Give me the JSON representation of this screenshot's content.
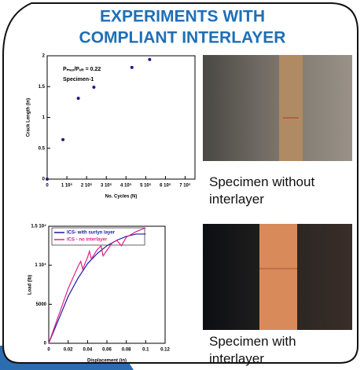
{
  "title_lines": [
    "EXPERIMENTS WITH",
    "COMPLIANT  INTERLAYER"
  ],
  "captions": [
    "Specimen without interlayer",
    "Specimen with interlayer"
  ],
  "chart_data": [
    {
      "type": "scatter",
      "xlabel": "No. Cycles (N)",
      "ylabel": "Crack Length (in)",
      "annotations": [
        "Pₘₐₓ/Pᵤₗₜ = 0.22",
        "Specimen-1"
      ],
      "x": [
        0,
        80000,
        158000,
        237000,
        430000,
        520000
      ],
      "values": [
        0,
        0.64,
        1.31,
        1.49,
        1.81,
        1.94
      ],
      "color": "#1a1a8c",
      "xlim": [
        0,
        750000
      ],
      "xticks": [
        0,
        {
          "value": 100000,
          "label": "1 10⁵"
        },
        {
          "value": 200000,
          "label": "2 10⁵"
        },
        {
          "value": 300000,
          "label": "3 10⁵"
        },
        {
          "value": 400000,
          "label": "4 10⁵"
        },
        {
          "value": 500000,
          "label": "5 10⁵"
        },
        {
          "value": 600000,
          "label": "6 10⁵"
        },
        {
          "value": 700000,
          "label": "7 10⁵"
        }
      ],
      "ylim": [
        0,
        2
      ],
      "yticks": [
        0,
        0.5,
        1,
        1.5,
        2
      ]
    },
    {
      "type": "line",
      "xlabel": "Displacement (in)",
      "ylabel": "Load (lb)",
      "series": [
        {
          "name": "ICS- with surlyn layer",
          "color": "#1a1aa0",
          "x": [
            0,
            0.01,
            0.02,
            0.03,
            0.04,
            0.05,
            0.06,
            0.07,
            0.08,
            0.09,
            0.1
          ],
          "values": [
            0,
            3000,
            6000,
            8300,
            10200,
            11500,
            12500,
            13200,
            13700,
            14000,
            14000
          ]
        },
        {
          "name": "ICS - no interlayer",
          "color": "#e0208a",
          "x": [
            0,
            0.01,
            0.02,
            0.03,
            0.033,
            0.035,
            0.04,
            0.042,
            0.044,
            0.05,
            0.054,
            0.056,
            0.065,
            0.07,
            0.075,
            0.08,
            0.09,
            0.1
          ],
          "values": [
            0,
            3500,
            7000,
            9800,
            10500,
            9500,
            11000,
            11800,
            10800,
            12000,
            12500,
            11200,
            12800,
            13200,
            12500,
            13600,
            14300,
            14800
          ]
        }
      ],
      "xlim": [
        0,
        0.12
      ],
      "xticks": [
        0,
        0.02,
        0.04,
        0.06,
        0.08,
        0.1,
        0.12
      ],
      "ylim": [
        0,
        15000
      ],
      "yticks": [
        0,
        5000,
        {
          "value": 10000,
          "label": "1 10⁴"
        },
        {
          "value": 15000,
          "label": "1.5 10⁴"
        }
      ]
    }
  ]
}
